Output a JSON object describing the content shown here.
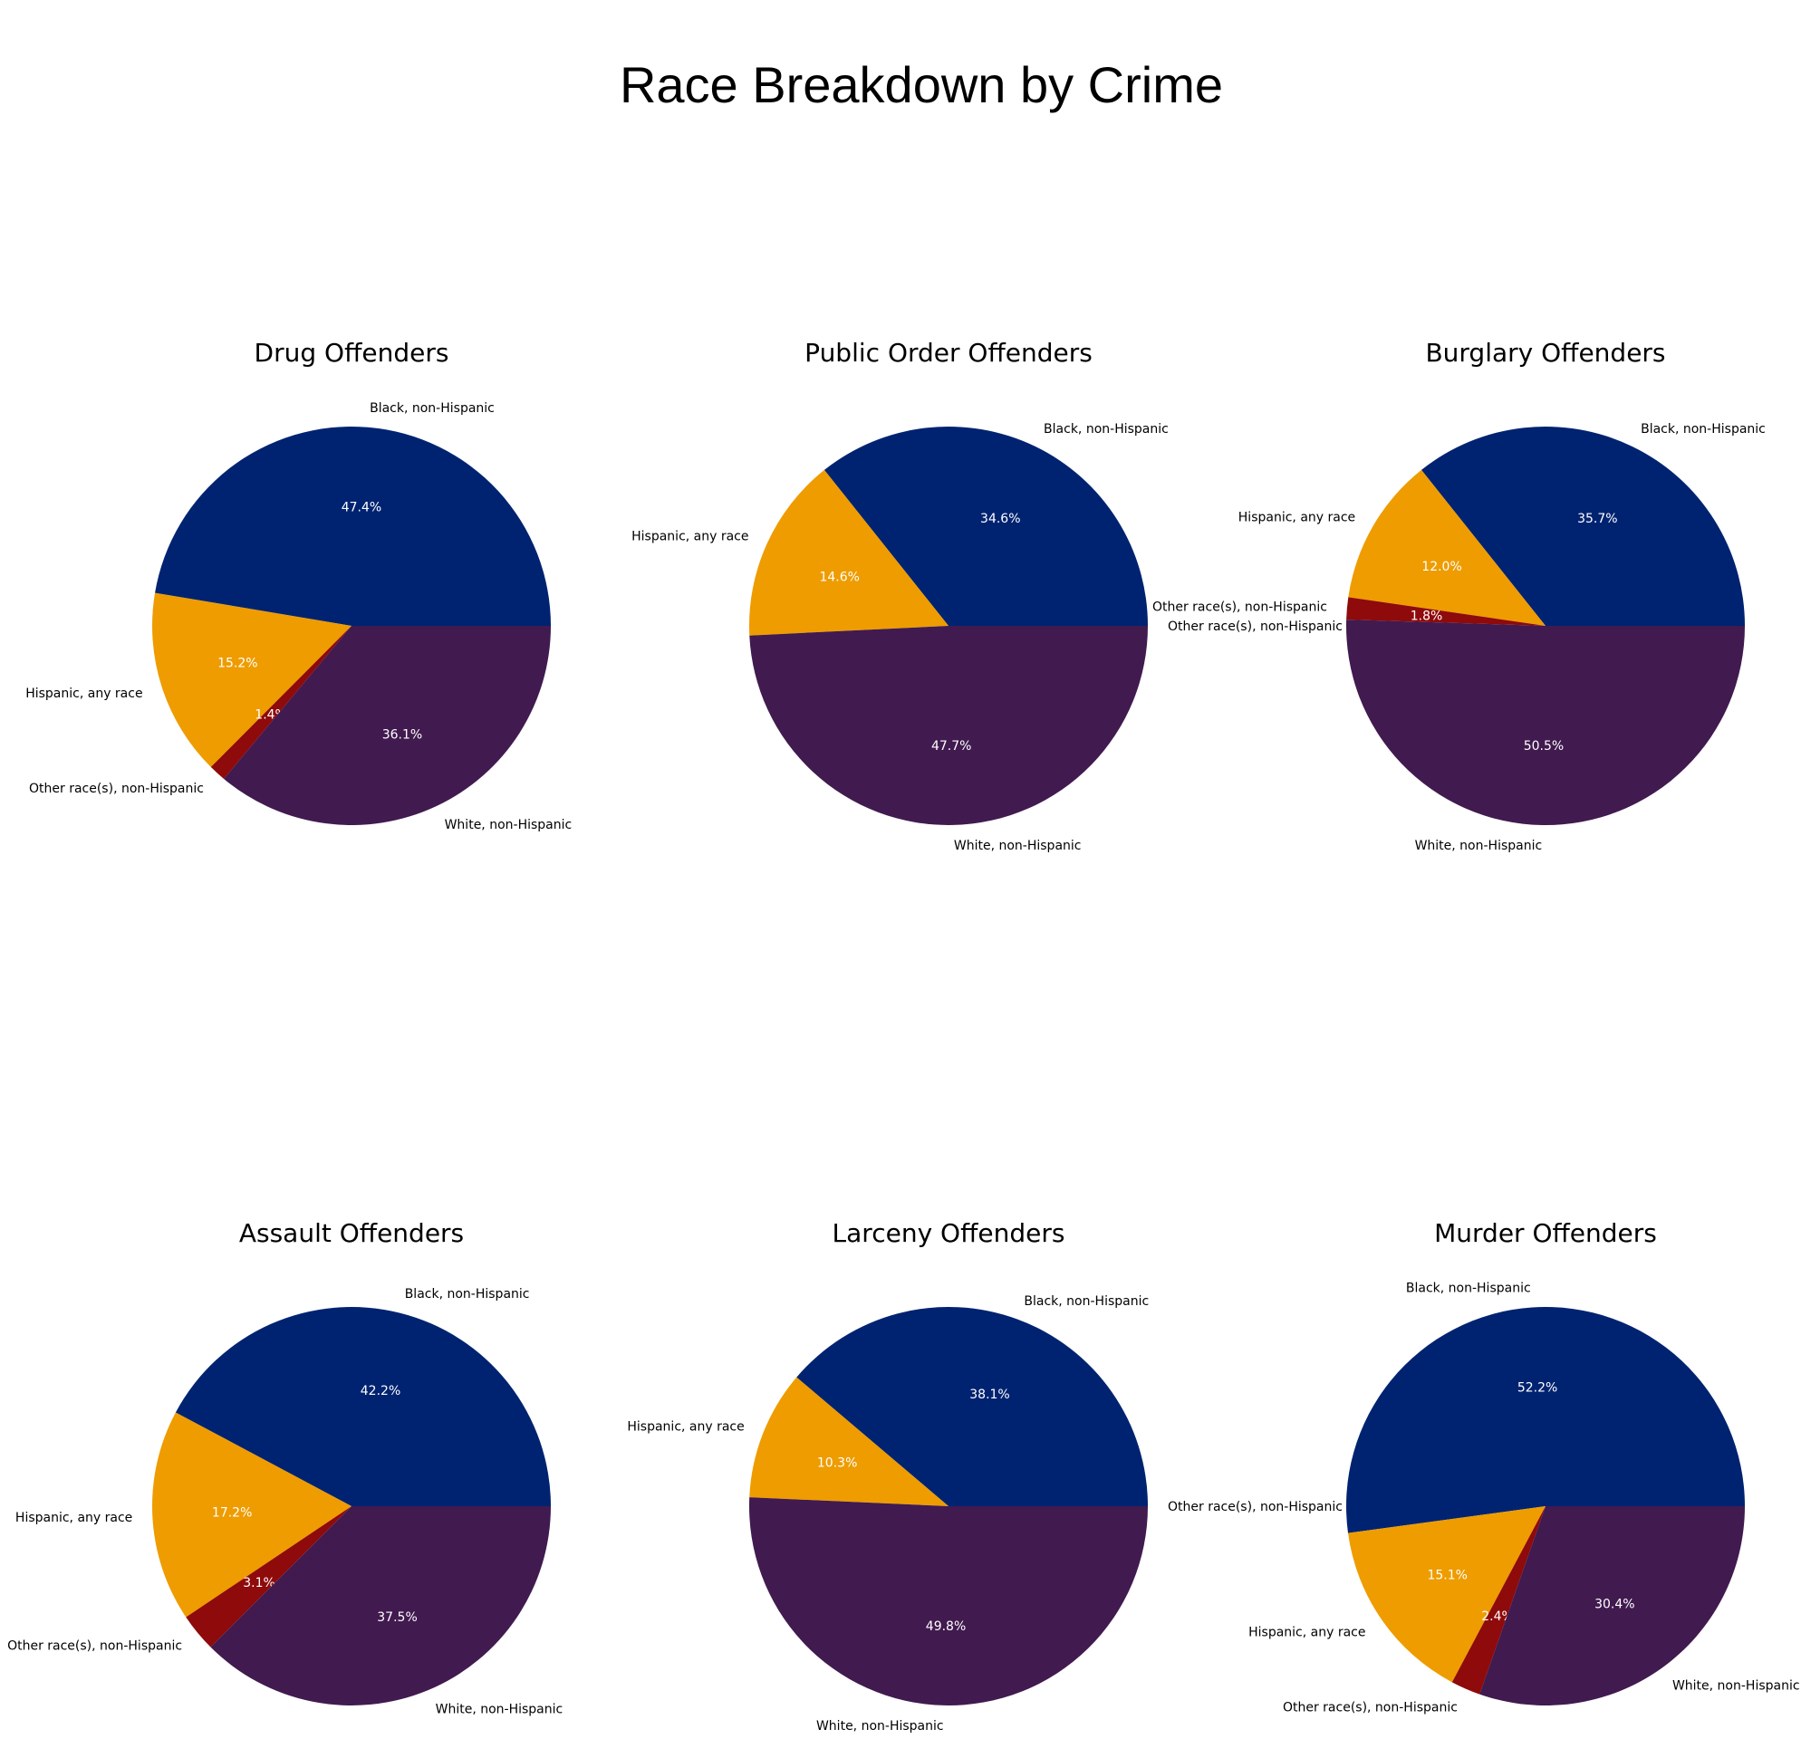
{
  "title": "Race Breakdown by Crime",
  "colors": {
    "Black, non-Hispanic": "#002371",
    "Hispanic, any race": "#EE9C00",
    "Other race(s), non-Hispanic": "#8F0A0A",
    "White, non-Hispanic": "#411A4F"
  },
  "chart_data": [
    {
      "type": "pie",
      "title": "Drug Offenders",
      "labels": [
        "Black, non-Hispanic",
        "Hispanic, any race",
        "Other race(s), non-Hispanic",
        "White, non-Hispanic"
      ],
      "values": [
        47.4,
        15.2,
        1.4,
        36.1
      ],
      "pct_labels": [
        "47.4%",
        "15.2%",
        "1.4%",
        "36.1%"
      ]
    },
    {
      "type": "pie",
      "title": "Public Order Offenders",
      "labels": [
        "Other race(s), non-Hispanic",
        "Black, non-Hispanic",
        "Hispanic, any race",
        "White, non-Hispanic"
      ],
      "values": [
        0.0,
        34.6,
        14.6,
        47.7
      ],
      "pct_labels": [
        "",
        "34.6%",
        "14.6%",
        "47.7%"
      ]
    },
    {
      "type": "pie",
      "title": "Burglary Offenders",
      "labels": [
        "Black, non-Hispanic",
        "Hispanic, any race",
        "Other race(s), non-Hispanic",
        "White, non-Hispanic"
      ],
      "values": [
        35.7,
        12.0,
        1.8,
        50.5
      ],
      "pct_labels": [
        "35.7%",
        "12.0%",
        "1.8%",
        "50.5%"
      ]
    },
    {
      "type": "pie",
      "title": "Assault Offenders",
      "labels": [
        "Black, non-Hispanic",
        "Hispanic, any race",
        "Other race(s), non-Hispanic",
        "White, non-Hispanic"
      ],
      "values": [
        42.2,
        17.2,
        3.1,
        37.5
      ],
      "pct_labels": [
        "42.2%",
        "17.2%",
        "3.1%",
        "37.5%"
      ]
    },
    {
      "type": "pie",
      "title": "Larceny Offenders",
      "labels": [
        "Other race(s), non-Hispanic",
        "Black, non-Hispanic",
        "Hispanic, any race",
        "White, non-Hispanic"
      ],
      "values": [
        0.0,
        38.1,
        10.3,
        49.8
      ],
      "pct_labels": [
        "",
        "38.1%",
        "10.3%",
        "49.8%"
      ]
    },
    {
      "type": "pie",
      "title": "Murder Offenders",
      "labels": [
        "Black, non-Hispanic",
        "Hispanic, any race",
        "Other race(s), non-Hispanic",
        "White, non-Hispanic"
      ],
      "values": [
        52.2,
        15.1,
        2.4,
        30.4
      ],
      "pct_labels": [
        "52.2%",
        "15.1%",
        "2.4%",
        "30.4%"
      ]
    }
  ]
}
